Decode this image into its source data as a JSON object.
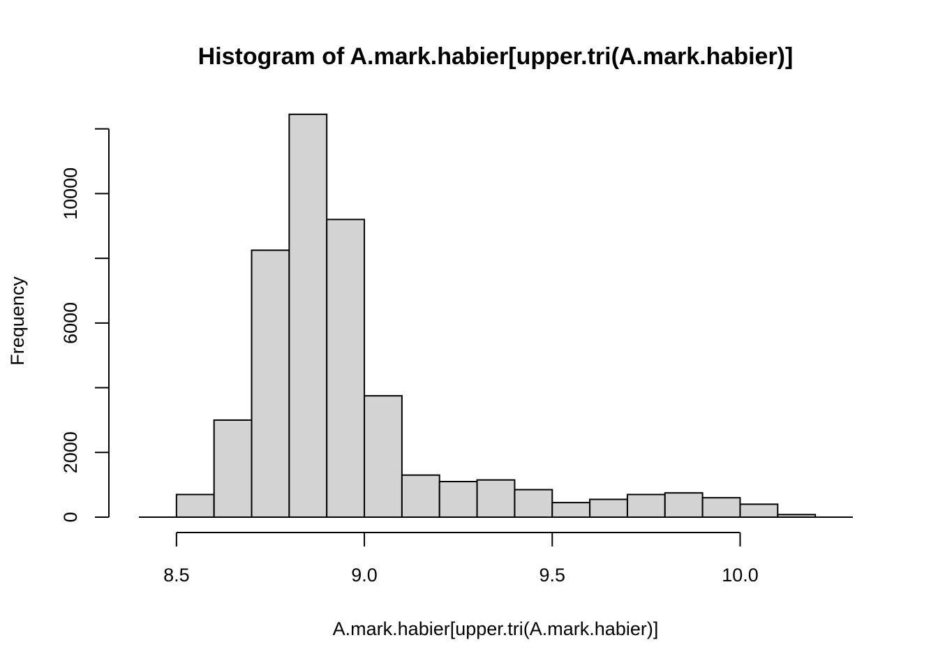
{
  "chart_data": {
    "type": "bar",
    "subtype": "histogram",
    "title": "Histogram of A.mark.habier[upper.tri(A.mark.habier)]",
    "xlabel": "A.mark.habier[upper.tri(A.mark.habier)]",
    "ylabel": "Frequency",
    "bin_edges": [
      8.5,
      8.6,
      8.7,
      8.8,
      8.9,
      9.0,
      9.1,
      9.2,
      9.3,
      9.4,
      9.5,
      9.6,
      9.7,
      9.8,
      9.9,
      10.0,
      10.1,
      10.2
    ],
    "values": [
      700,
      3000,
      8250,
      12450,
      9200,
      3750,
      1300,
      1100,
      1150,
      850,
      450,
      550,
      700,
      750,
      600,
      400,
      80
    ],
    "xlim": [
      8.4,
      10.3
    ],
    "ylim": [
      0,
      12100
    ],
    "x_ticks": [
      8.5,
      9.0,
      9.5,
      10.0
    ],
    "x_tick_labels": [
      "8.5",
      "9.0",
      "9.5",
      "10.0"
    ],
    "y_ticks": [
      0,
      2000,
      4000,
      6000,
      8000,
      10000,
      12000
    ],
    "y_tick_labels": [
      "0",
      "2000",
      "",
      "6000",
      "",
      "10000",
      ""
    ],
    "colors": {
      "bar_fill": "#d3d3d3",
      "bar_stroke": "#000000"
    },
    "grid": false,
    "legend": "none"
  }
}
